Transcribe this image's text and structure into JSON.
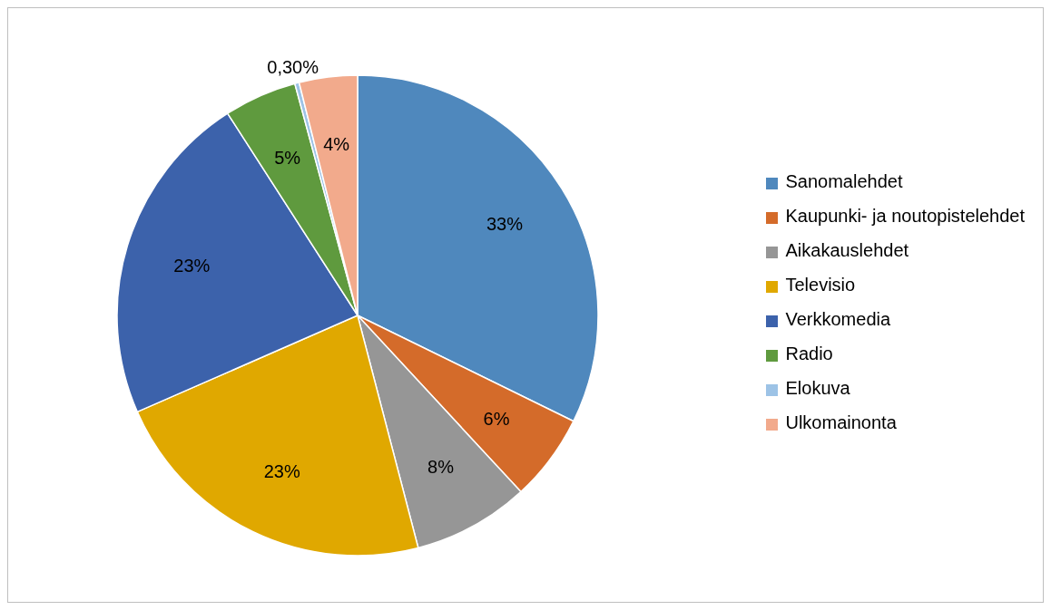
{
  "chart_data": {
    "type": "pie",
    "categories": [
      "Sanomalehdet",
      "Kaupunki- ja noutopistelehdet",
      "Aikakauslehdet",
      "Televisio",
      "Verkkomedia",
      "Radio",
      "Elokuva",
      "Ulkomainonta"
    ],
    "values": [
      33,
      6,
      8,
      23,
      23,
      5,
      0.3,
      4
    ],
    "value_labels": [
      "33%",
      "6%",
      "8%",
      "23%",
      "23%",
      "5%",
      "0,30%",
      "4%"
    ],
    "colors": [
      "#4f88bd",
      "#d46b2a",
      "#969696",
      "#e0a800",
      "#3c62ab",
      "#5f9a3e",
      "#9dc3e6",
      "#f2aa8c"
    ],
    "legend": "right"
  }
}
